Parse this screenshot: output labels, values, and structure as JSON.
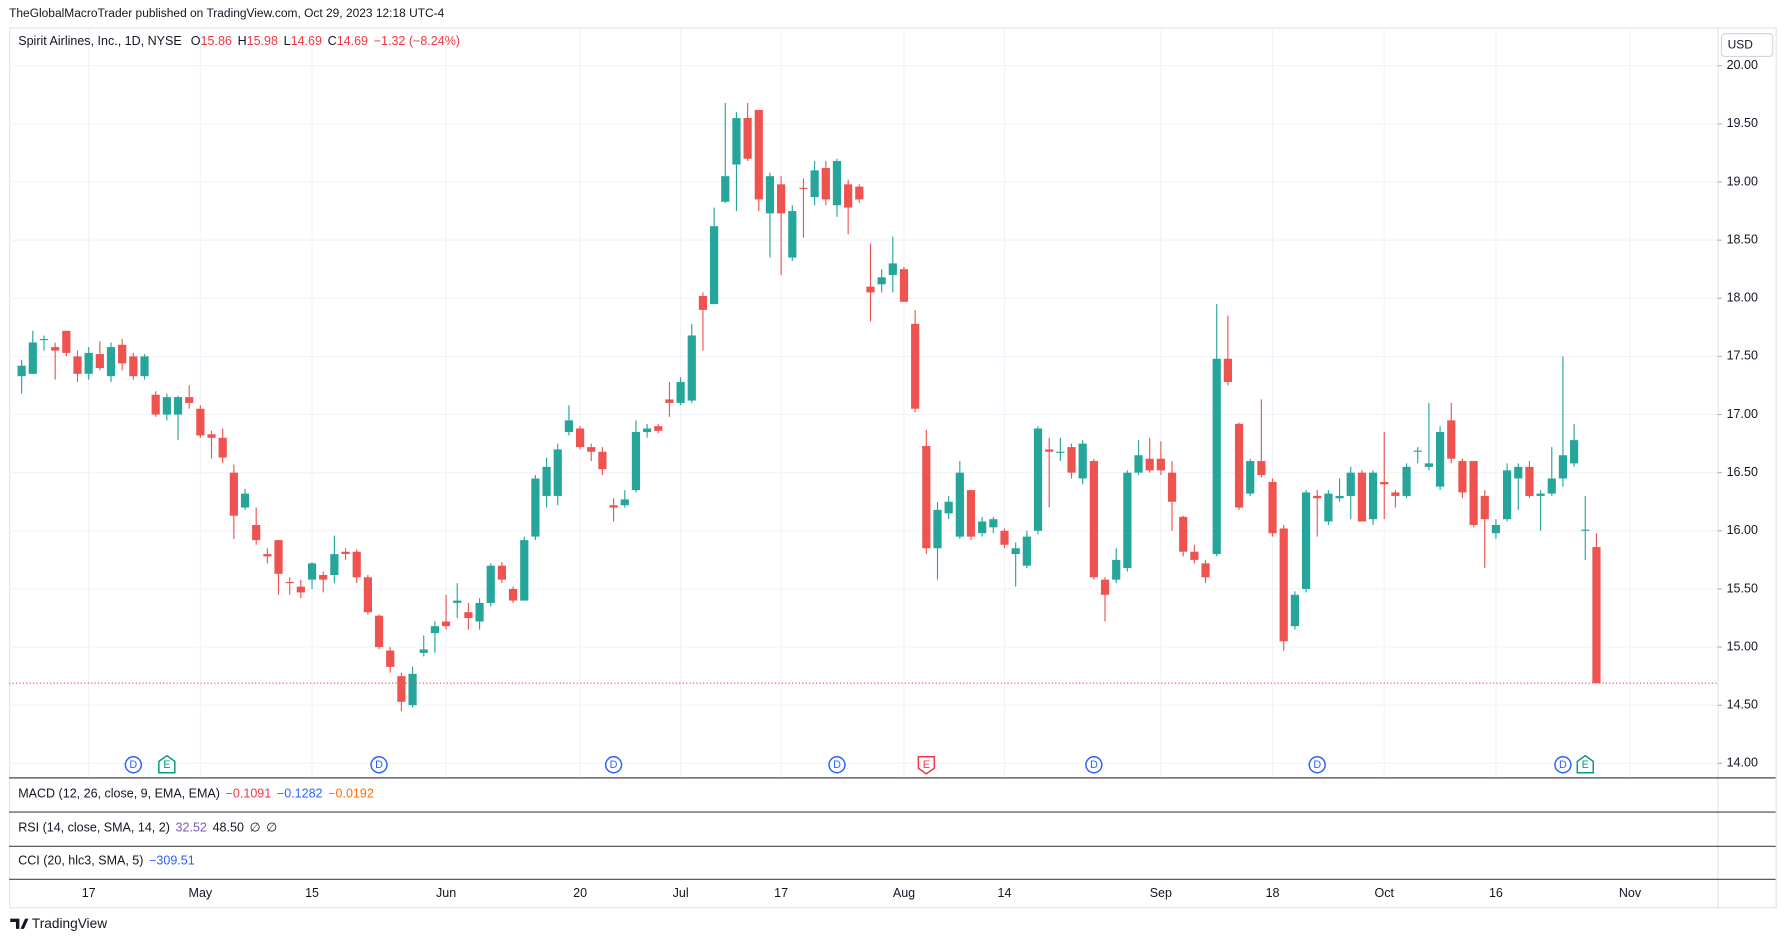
{
  "header": {
    "published": "TheGlobalMacroTrader published on TradingView.com, Oct 29, 2023 12:18 UTC-4",
    "symbol": "Spirit Airlines, Inc., 1D, NYSE",
    "ohlc": [
      {
        "label": "O",
        "value": 15.86
      },
      {
        "label": "H",
        "value": 15.98
      },
      {
        "label": "L",
        "value": 14.69
      },
      {
        "label": "C",
        "value": 14.69
      }
    ],
    "change": "−1.32 (−8.24%)"
  },
  "indicators": [
    {
      "name": "MACD (12, 26, close, 9, EMA, EMA)",
      "values": [
        {
          "text": "−0.1091",
          "color": "#f23645"
        },
        {
          "text": "−0.1282",
          "color": "#2962ff"
        },
        {
          "text": "−0.0192",
          "color": "#ff6d00"
        }
      ]
    },
    {
      "name": "RSI (14, close, SMA, 14, 2)",
      "values": [
        {
          "text": "32.52",
          "color": "#7e57c2"
        },
        {
          "text": "48.50",
          "color": "#131722"
        },
        {
          "text": "∅",
          "color": "#131722"
        },
        {
          "text": "∅",
          "color": "#131722"
        }
      ]
    },
    {
      "name": "CCI (20, hlc3, SMA, 5)",
      "values": [
        {
          "text": "−309.51",
          "color": "#2962ff"
        }
      ]
    }
  ],
  "footer": {
    "brand": "TradingView"
  },
  "chart_data": {
    "type": "candlestick",
    "up_color": "#26a69a",
    "down_color": "#ef5350",
    "currency": "USD",
    "grid": true,
    "last_price_line": true,
    "ylim": [
      13.88,
      20.33
    ],
    "yticks": [
      {
        "value": 14,
        "label": "14.00"
      },
      {
        "value": 14.5,
        "label": "14.50"
      },
      {
        "value": 15,
        "label": "15.00"
      },
      {
        "value": 15.5,
        "label": "15.50"
      },
      {
        "value": 16,
        "label": "16.00"
      },
      {
        "value": 16.5,
        "label": "16.50"
      },
      {
        "value": 17,
        "label": "17.00"
      },
      {
        "value": 17.5,
        "label": "17.50"
      },
      {
        "value": 18,
        "label": "18.00"
      },
      {
        "value": 18.5,
        "label": "18.50"
      },
      {
        "value": 19,
        "label": "19.00"
      },
      {
        "value": 19.5,
        "label": "19.50"
      },
      {
        "value": 20,
        "label": "20.00"
      }
    ],
    "xticks": [
      {
        "value": 6,
        "label": "17"
      },
      {
        "value": 16,
        "label": "May"
      },
      {
        "value": 26,
        "label": "15"
      },
      {
        "value": 38,
        "label": "Jun"
      },
      {
        "value": 50,
        "label": "20"
      },
      {
        "value": 59,
        "label": "Jul"
      },
      {
        "value": 68,
        "label": "17"
      },
      {
        "value": 79,
        "label": "Aug"
      },
      {
        "value": 88,
        "label": "14"
      },
      {
        "value": 102,
        "label": "Sep"
      },
      {
        "value": 112,
        "label": "18"
      },
      {
        "value": 122,
        "label": "Oct"
      },
      {
        "value": 132,
        "label": "16"
      },
      {
        "value": 144,
        "label": "Nov"
      }
    ],
    "events": [
      {
        "label": "D",
        "index": 10,
        "color": "#2962ff"
      },
      {
        "label": "E",
        "index": 13,
        "color": "#089981"
      },
      {
        "label": "D",
        "index": 32,
        "color": "#2962ff"
      },
      {
        "label": "D",
        "index": 53,
        "color": "#2962ff"
      },
      {
        "label": "D",
        "index": 73,
        "color": "#2962ff"
      },
      {
        "label": "E",
        "index": 81,
        "color": "#f23645"
      },
      {
        "label": "D",
        "index": 96,
        "color": "#2962ff"
      },
      {
        "label": "D",
        "index": 116,
        "color": "#2962ff"
      },
      {
        "label": "D",
        "index": 138,
        "color": "#2962ff"
      },
      {
        "label": "E",
        "index": 140,
        "color": "#089981"
      }
    ],
    "open": [
      17.33,
      17.35,
      17.64,
      17.58,
      17.72,
      17.5,
      17.35,
      17.52,
      17.33,
      17.6,
      17.5,
      17.33,
      17.17,
      17.0,
      17.0,
      17.15,
      17.05,
      16.83,
      16.8,
      16.5,
      16.2,
      16.05,
      15.8,
      15.92,
      15.56,
      15.52,
      15.58,
      15.62,
      15.62,
      15.82,
      15.82,
      15.6,
      15.27,
      14.97,
      14.75,
      14.5,
      14.95,
      15.12,
      15.22,
      15.38,
      15.3,
      15.22,
      15.38,
      15.7,
      15.5,
      15.4,
      15.95,
      16.3,
      16.3,
      16.85,
      16.88,
      16.72,
      16.68,
      16.22,
      16.22,
      16.35,
      16.85,
      16.9,
      17.13,
      17.1,
      17.12,
      18.02,
      17.95,
      18.83,
      19.15,
      19.55,
      19.62,
      18.73,
      18.98,
      18.35,
      18.95,
      18.87,
      19.12,
      18.8,
      18.98,
      18.96,
      18.1,
      18.12,
      18.2,
      18.25,
      17.78,
      16.73,
      15.85,
      16.15,
      15.95,
      16.35,
      15.98,
      16.03,
      16.0,
      15.8,
      15.7,
      16.0,
      16.7,
      16.67,
      16.72,
      16.45,
      16.6,
      15.58,
      15.58,
      15.68,
      16.5,
      16.62,
      16.62,
      16.5,
      16.12,
      15.82,
      15.72,
      15.8,
      17.48,
      16.92,
      16.32,
      16.6,
      16.42,
      16.02,
      15.18,
      15.5,
      16.3,
      16.08,
      16.28,
      16.3,
      16.5,
      16.1,
      16.42,
      16.33,
      16.3,
      16.68,
      16.55,
      16.38,
      16.95,
      16.6,
      16.6,
      16.3,
      15.98,
      16.1,
      16.45,
      16.55,
      16.3,
      16.32,
      16.45,
      16.58,
      16.0,
      15.86
    ],
    "high": [
      17.47,
      17.72,
      17.68,
      17.62,
      17.72,
      17.55,
      17.58,
      17.63,
      17.62,
      17.65,
      17.53,
      17.52,
      17.2,
      17.18,
      17.16,
      17.25,
      17.08,
      16.86,
      16.88,
      16.57,
      16.36,
      16.2,
      15.85,
      15.92,
      15.6,
      15.58,
      15.73,
      15.65,
      15.96,
      15.85,
      15.84,
      15.62,
      15.28,
      15.0,
      14.78,
      14.83,
      15.1,
      15.22,
      15.45,
      15.55,
      15.38,
      15.42,
      15.72,
      15.73,
      15.52,
      15.95,
      16.48,
      16.63,
      16.75,
      17.08,
      16.9,
      16.75,
      16.72,
      16.28,
      16.35,
      16.95,
      16.92,
      16.92,
      17.28,
      17.32,
      17.78,
      18.05,
      18.78,
      19.68,
      19.6,
      19.68,
      19.62,
      19.08,
      19.05,
      18.8,
      19.03,
      19.18,
      19.18,
      19.2,
      19.02,
      18.98,
      18.47,
      18.25,
      18.53,
      18.27,
      17.9,
      16.87,
      16.25,
      16.3,
      16.6,
      16.35,
      16.12,
      16.12,
      16.02,
      15.9,
      16.0,
      16.9,
      16.8,
      16.8,
      16.75,
      16.78,
      16.62,
      15.6,
      15.85,
      16.52,
      16.78,
      16.8,
      16.77,
      16.6,
      16.13,
      15.88,
      15.75,
      17.95,
      17.85,
      16.93,
      16.62,
      17.13,
      16.45,
      16.05,
      15.48,
      16.35,
      16.35,
      16.35,
      16.45,
      16.55,
      16.52,
      16.52,
      16.85,
      16.35,
      16.58,
      16.72,
      17.1,
      16.9,
      17.1,
      16.62,
      16.6,
      16.35,
      16.1,
      16.58,
      16.58,
      16.6,
      16.35,
      16.72,
      17.5,
      16.92,
      16.3,
      15.98
    ],
    "low": [
      17.18,
      17.35,
      17.55,
      17.3,
      17.5,
      17.28,
      17.3,
      17.38,
      17.28,
      17.38,
      17.3,
      17.3,
      16.98,
      16.95,
      16.78,
      17.05,
      16.8,
      16.62,
      16.58,
      15.93,
      16.18,
      15.88,
      15.72,
      15.45,
      15.45,
      15.42,
      15.5,
      15.47,
      15.55,
      15.75,
      15.55,
      15.28,
      14.98,
      14.78,
      14.45,
      14.48,
      14.92,
      14.95,
      15.15,
      15.25,
      15.15,
      15.15,
      15.35,
      15.55,
      15.38,
      15.4,
      15.92,
      16.2,
      16.22,
      16.82,
      16.7,
      16.6,
      16.48,
      16.08,
      16.2,
      16.33,
      16.8,
      16.84,
      16.98,
      17.08,
      17.1,
      17.55,
      17.95,
      18.82,
      18.75,
      19.18,
      18.75,
      18.35,
      18.2,
      18.32,
      18.52,
      18.8,
      18.8,
      18.7,
      18.55,
      18.82,
      17.8,
      18.05,
      18.05,
      17.97,
      17.02,
      15.8,
      15.58,
      16.1,
      15.93,
      15.92,
      15.95,
      15.98,
      15.85,
      15.52,
      15.68,
      15.97,
      16.2,
      16.6,
      16.45,
      16.4,
      15.58,
      15.22,
      15.55,
      15.65,
      16.48,
      16.5,
      16.48,
      16.0,
      15.78,
      15.72,
      15.55,
      15.78,
      17.25,
      16.18,
      16.3,
      16.46,
      15.95,
      14.97,
      15.15,
      15.47,
      15.95,
      16.05,
      16.25,
      16.1,
      16.08,
      16.05,
      16.1,
      16.2,
      16.28,
      16.58,
      16.52,
      16.35,
      16.58,
      16.28,
      16.03,
      15.68,
      15.93,
      16.08,
      16.18,
      16.28,
      16.0,
      16.3,
      16.38,
      16.55,
      15.75,
      14.69
    ],
    "close": [
      17.42,
      17.62,
      17.65,
      17.55,
      17.53,
      17.35,
      17.53,
      17.4,
      17.58,
      17.44,
      17.33,
      17.5,
      17.0,
      17.15,
      17.15,
      17.1,
      16.82,
      16.8,
      16.63,
      16.13,
      16.32,
      15.92,
      15.78,
      15.63,
      15.55,
      15.47,
      15.72,
      15.58,
      15.8,
      15.8,
      15.6,
      15.3,
      15.0,
      14.83,
      14.53,
      14.77,
      14.98,
      15.18,
      15.18,
      15.4,
      15.25,
      15.38,
      15.7,
      15.58,
      15.4,
      15.92,
      16.45,
      16.55,
      16.7,
      16.95,
      16.72,
      16.68,
      16.53,
      16.2,
      16.27,
      16.85,
      16.88,
      16.86,
      17.1,
      17.28,
      17.68,
      17.9,
      18.62,
      19.05,
      19.55,
      19.2,
      18.85,
      19.05,
      18.73,
      18.75,
      18.94,
      19.1,
      18.85,
      19.18,
      18.78,
      18.85,
      18.05,
      18.18,
      18.3,
      17.97,
      17.05,
      15.85,
      16.18,
      16.25,
      16.5,
      15.95,
      16.08,
      16.1,
      15.88,
      15.85,
      15.95,
      16.88,
      16.68,
      16.68,
      16.5,
      16.75,
      15.6,
      15.45,
      15.75,
      16.5,
      16.65,
      16.52,
      16.52,
      16.25,
      15.82,
      15.75,
      15.6,
      17.48,
      17.28,
      16.2,
      16.6,
      16.48,
      15.98,
      15.05,
      15.45,
      16.33,
      16.28,
      16.32,
      16.3,
      16.5,
      16.08,
      16.5,
      16.4,
      16.3,
      16.55,
      16.69,
      16.58,
      16.85,
      16.62,
      16.33,
      16.05,
      16.1,
      16.05,
      16.52,
      16.55,
      16.3,
      16.32,
      16.45,
      16.65,
      16.78,
      16.01,
      14.69
    ]
  }
}
